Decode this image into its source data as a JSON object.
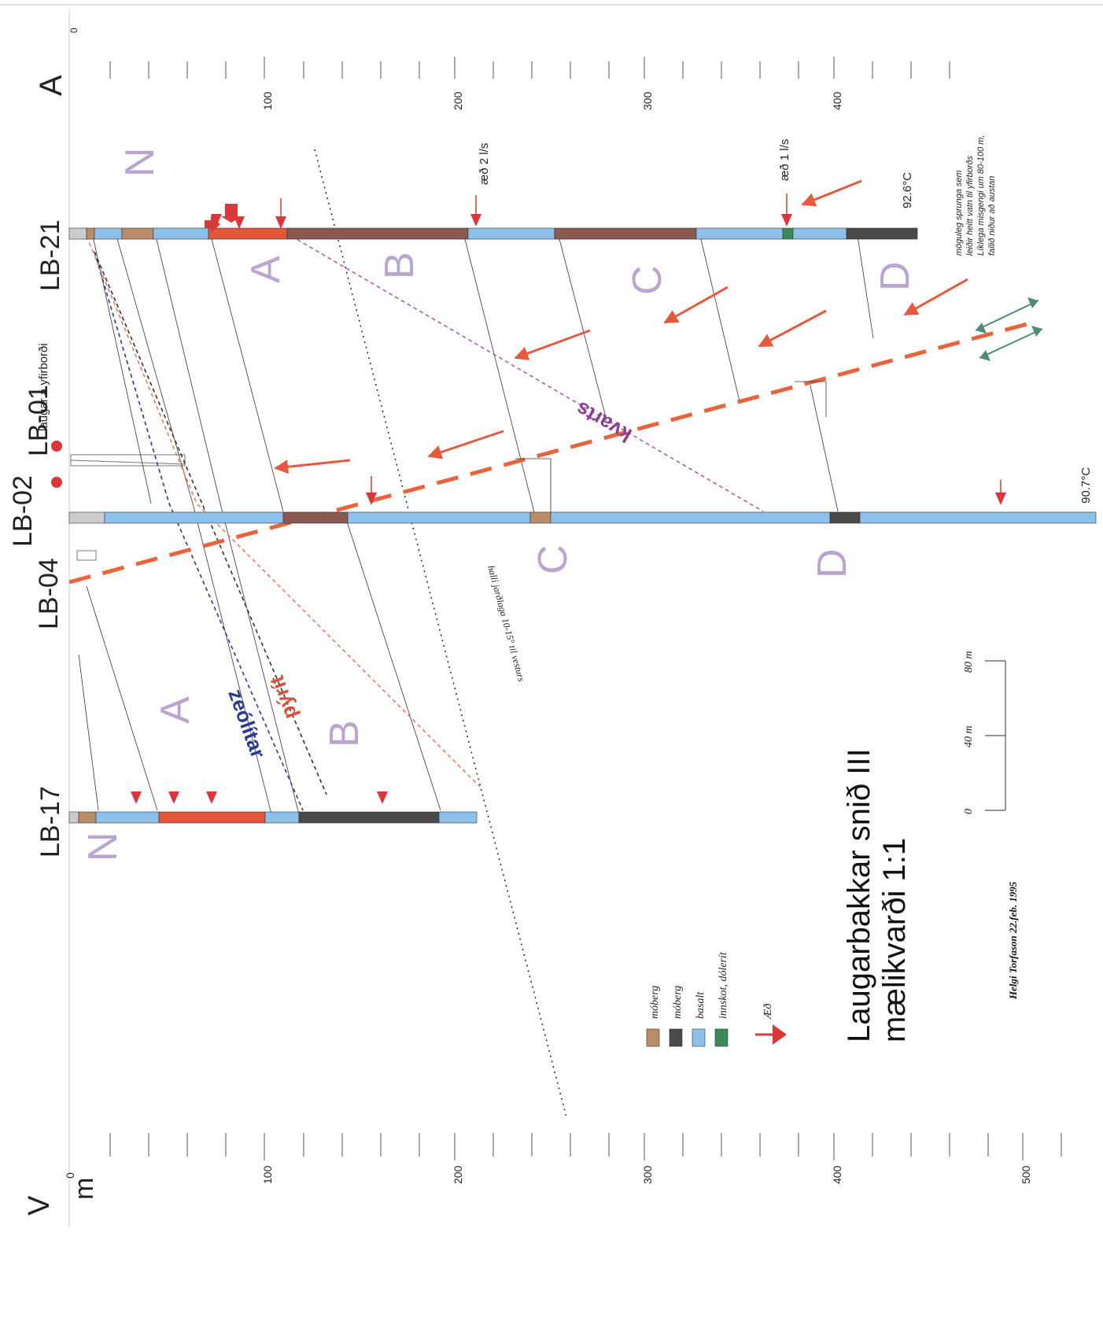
{
  "end_labels": {
    "west": "V",
    "east": "A",
    "unit": "m"
  },
  "depth_ticks_left": [
    "0",
    "100",
    "200",
    "300",
    "400",
    "500"
  ],
  "depth_ticks_right": [
    "0",
    "100",
    "200",
    "300",
    "400"
  ],
  "wells": [
    {
      "id": "lb17",
      "label": "LB-17"
    },
    {
      "id": "lb04",
      "label": "LB-04"
    },
    {
      "id": "lb02",
      "label": "LB-02"
    },
    {
      "id": "lb01",
      "label": "LB-01"
    },
    {
      "id": "lb21",
      "label": "LB-21"
    }
  ],
  "surface_hotspring_label": "laugar á yfirborði",
  "unit_letters": {
    "n": "N",
    "a": "A",
    "b": "B",
    "c": "C",
    "d": "D"
  },
  "mineral_zones": {
    "zeolite": "zeólítar",
    "pyrite": "pýrít",
    "quartz": "kvarts"
  },
  "flow_notes": {
    "lb21_upper": "æð 2 l/s",
    "lb21_lower": "æð 1 l/s"
  },
  "temperatures": {
    "lb21": "92.6°C",
    "lb02": "90.7°C"
  },
  "dip_note": "halli jarðlaga 10-15° til vesturs",
  "fault_note": [
    "möguleg sprunga sem",
    "leiðir heitt vatn til yfirborðs",
    "Líklega misgengi um 80-100 m,",
    "fallið niður að austan"
  ],
  "legend": {
    "items": [
      {
        "label": "móberg",
        "color": "#b98d68"
      },
      {
        "label": "móberg",
        "color": "#4a4a4a"
      },
      {
        "label": "basalt",
        "color": "#8dc0ea"
      },
      {
        "label": "innskot, dólerít",
        "color": "#3c8a5c"
      }
    ],
    "inflow_label": "Æð",
    "inflow_color": "#d8383a"
  },
  "scale_bar": [
    "0",
    "40 m",
    "80 m"
  ],
  "title": [
    "Laugarbakkar snið III",
    "mælikvarði 1:1"
  ],
  "signature": "Helgi Torfason 22.feb. 1995",
  "colors": {
    "basalt": "#8dc0ea",
    "moberg_brown": "#b98d68",
    "moberg_dark": "#4a4a4a",
    "red_unit": "#e4553a",
    "dolerite": "#3c8a5c",
    "fault": "#e8643c",
    "arrow": "#e35a3e",
    "unit_letter": "#b9a5cf",
    "zeolite": "#2b3a8c",
    "pyrite": "#d0553a",
    "quartz": "#8a3f8f"
  }
}
